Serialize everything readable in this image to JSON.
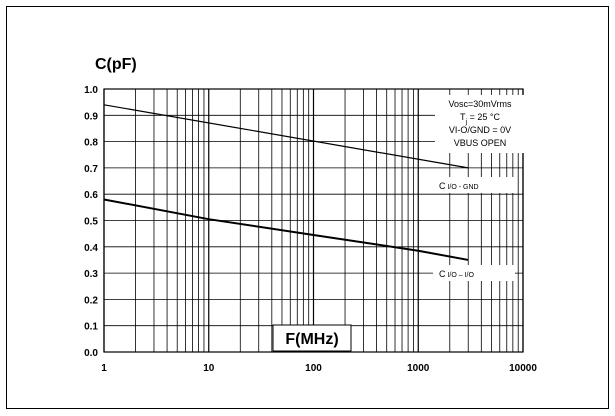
{
  "chart_data": {
    "type": "line",
    "y_title": "C(pF)",
    "x_title": "F(MHz)",
    "x_scale": "log",
    "xlim": [
      1,
      10000
    ],
    "ylim": [
      0.0,
      1.0
    ],
    "grid": true,
    "x_ticks": [
      "1",
      "10",
      "100",
      "1000",
      "10000"
    ],
    "y_ticks": [
      "0.0",
      "0.1",
      "0.2",
      "0.3",
      "0.4",
      "0.5",
      "0.6",
      "0.7",
      "0.8",
      "0.9",
      "1.0"
    ],
    "conditions": {
      "line1": "Vosc=30mVrms",
      "line2_main": "T",
      "line2_sub": "j",
      "line2_rest": " = 25 °C",
      "line3": "VI-O/GND = 0V",
      "line4": "VBUS OPEN"
    },
    "series": [
      {
        "name_main": "C",
        "name_sub": " I/O - GND",
        "x": [
          1,
          3000
        ],
        "y": [
          0.94,
          0.7
        ],
        "color": "#000000"
      },
      {
        "name_main": "C",
        "name_sub": " I/O – I/O",
        "x": [
          1,
          10,
          100,
          1000,
          3000
        ],
        "y": [
          0.58,
          0.505,
          0.445,
          0.385,
          0.35
        ],
        "color": "#000000"
      }
    ]
  }
}
